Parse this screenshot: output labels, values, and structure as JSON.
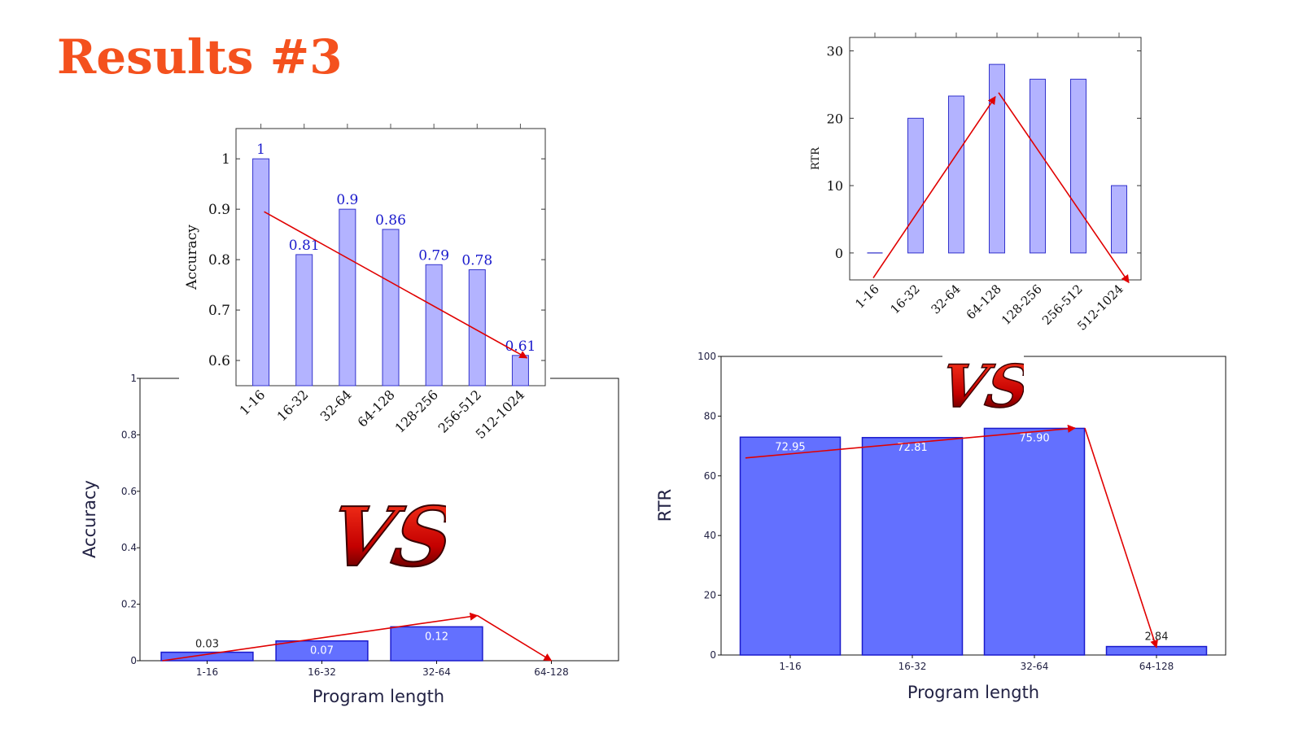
{
  "page": {
    "title": "Results #3"
  },
  "vs_label": "VS",
  "colors": {
    "title": "#f4511e",
    "arrow": "#e00000",
    "bar_light": "#b3b3ff",
    "bar_light_stroke": "#3333cc",
    "bar_dark": "#6370ff",
    "bar_dark_stroke": "#1a1acc",
    "value_label": "#1a1acc",
    "axis_text": "#222244"
  },
  "chart_data": [
    {
      "id": "bottom-left",
      "type": "bar",
      "categories": [
        "1-16",
        "16-32",
        "32-64",
        "64-128"
      ],
      "values": [
        0.03,
        0.07,
        0.12,
        0
      ],
      "labels": [
        "0.03",
        "0.07",
        "0.12",
        ""
      ],
      "xlabel": "Program length",
      "ylabel": "Accuracy",
      "ylim": [
        0,
        1
      ],
      "yticks": [
        "0",
        "0.2",
        "0.4",
        "0.6",
        "0.8",
        "1"
      ],
      "trend": "red arrows: rising across 1-16 to 32-64, then dropping to 64-128"
    },
    {
      "id": "top-left",
      "type": "bar",
      "categories": [
        "1-16",
        "16-32",
        "32-64",
        "64-128",
        "128-256",
        "256-512",
        "512-1024"
      ],
      "values": [
        1,
        0.81,
        0.9,
        0.86,
        0.79,
        0.78,
        0.61
      ],
      "labels": [
        "1",
        "0.81",
        "0.9",
        "0.86",
        "0.79",
        "0.78",
        "0.61"
      ],
      "xlabel": "",
      "ylabel": "Accuracy",
      "ylim": [
        0.55,
        1.06
      ],
      "yticks": [
        "0.6",
        "0.7",
        "0.8",
        "0.9",
        "1"
      ],
      "trend": "red arrow: decreasing from 1-16 to 512-1024"
    },
    {
      "id": "top-right",
      "type": "bar",
      "categories": [
        "1-16",
        "16-32",
        "32-64",
        "64-128",
        "128-256",
        "256-512",
        "512-1024"
      ],
      "values": [
        0,
        20,
        23.3,
        28,
        25.8,
        25.8,
        10
      ],
      "xlabel": "",
      "ylabel": "RTR",
      "ylim": [
        -4,
        32
      ],
      "yticks": [
        "0",
        "10",
        "20",
        "30"
      ],
      "trend": "red arrows: rising to 64-128, then falling to 512-1024"
    },
    {
      "id": "bottom-right",
      "type": "bar",
      "categories": [
        "1-16",
        "16-32",
        "32-64",
        "64-128"
      ],
      "values": [
        72.95,
        72.81,
        75.9,
        2.84
      ],
      "labels": [
        "72.95",
        "72.81",
        "75.90",
        "2.84"
      ],
      "xlabel": "Program length",
      "ylabel": "RTR",
      "ylim": [
        0,
        100
      ],
      "yticks": [
        "0",
        "20",
        "40",
        "60",
        "80",
        "100"
      ],
      "trend": "red arrows: slightly rising across 1-16 to 32-64, then dropping sharply to 64-128"
    }
  ]
}
